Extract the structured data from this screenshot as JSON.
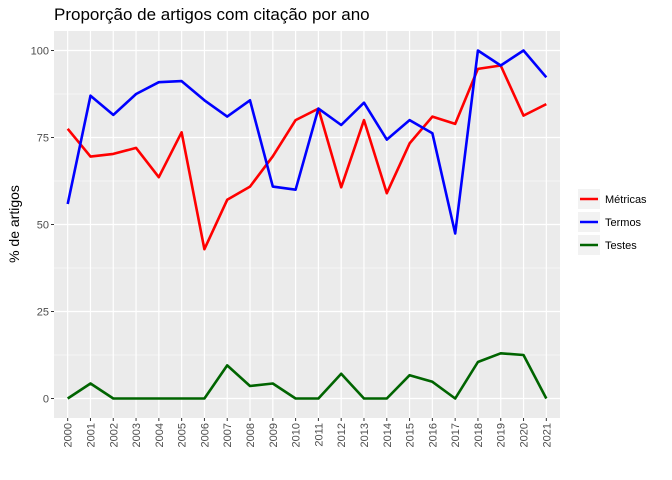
{
  "chart_data": {
    "type": "line",
    "title": "Proporção de artigos com citação por ano",
    "xlabel": "",
    "ylabel": "% de artigos",
    "x": [
      "2000",
      "2001",
      "2002",
      "2003",
      "2004",
      "2005",
      "2006",
      "2007",
      "2008",
      "2009",
      "2010",
      "2011",
      "2012",
      "2013",
      "2014",
      "2015",
      "2016",
      "2017",
      "2018",
      "2019",
      "2020",
      "2021"
    ],
    "ylim": [
      -5.6,
      105.6
    ],
    "yticks": [
      "0",
      "25",
      "50",
      "75",
      "100"
    ],
    "grid": true,
    "legend_position": "right",
    "series": [
      {
        "name": "Métricas",
        "color": "#ff0000",
        "values": [
          77.5,
          69.5,
          70.3,
          72.0,
          63.6,
          76.5,
          42.9,
          57.1,
          60.9,
          69.6,
          80.0,
          83.3,
          60.7,
          80.0,
          59.0,
          73.3,
          81.0,
          78.9,
          94.7,
          95.7,
          81.3,
          84.6
        ]
      },
      {
        "name": "Termos",
        "color": "#0000ff",
        "values": [
          55.9,
          87.0,
          81.5,
          87.5,
          90.9,
          91.2,
          85.7,
          81.0,
          85.7,
          60.9,
          60.0,
          83.3,
          78.6,
          85.0,
          74.4,
          80.0,
          76.2,
          47.4,
          100.0,
          95.7,
          100.0,
          92.3
        ]
      },
      {
        "name": "Testes",
        "color": "#006400",
        "values": [
          0.0,
          4.3,
          0.0,
          0.0,
          0.0,
          0.0,
          0.0,
          9.5,
          3.6,
          4.3,
          0.0,
          0.0,
          7.1,
          0.0,
          0.0,
          6.7,
          4.8,
          0.0,
          10.5,
          13.0,
          12.5,
          0.0
        ]
      }
    ]
  }
}
